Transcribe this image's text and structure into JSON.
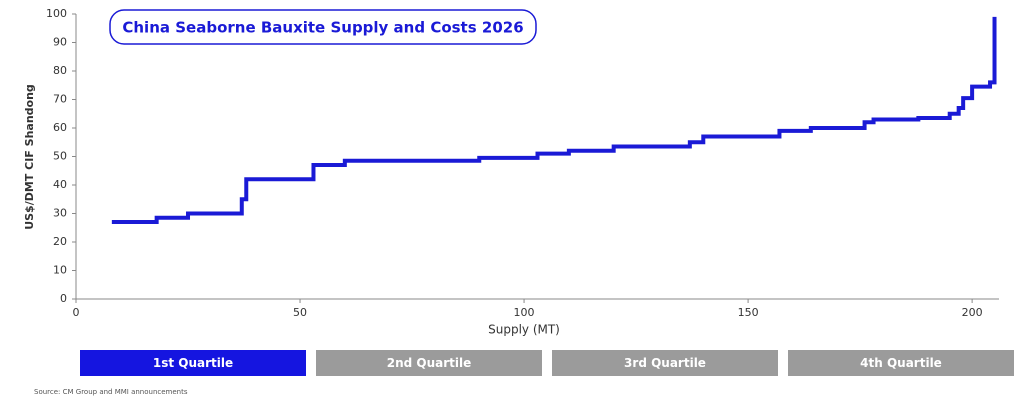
{
  "chart_data": {
    "type": "line",
    "step": "post",
    "title": "China Seaborne Bauxite Supply and Costs 2026",
    "x_label": "Supply (MT)",
    "y_label": "US$/DMT CIF Shandong",
    "x": [
      8,
      18,
      25,
      37,
      38,
      53,
      60,
      90,
      103,
      110,
      120,
      137,
      140,
      157,
      164,
      176,
      178,
      188,
      195,
      197,
      198,
      200,
      204,
      205
    ],
    "values": [
      27,
      28.5,
      30,
      35,
      42,
      47,
      48.5,
      49.5,
      51,
      52,
      53.5,
      55,
      57,
      59,
      60,
      62,
      63,
      63.5,
      65,
      67,
      70.5,
      74.5,
      76,
      99
    ],
    "color": "#1a1ad6",
    "xlim": [
      0,
      206
    ],
    "xticks": [
      0,
      50,
      100,
      150,
      200
    ],
    "ylim": [
      0,
      100
    ],
    "yticks": [
      0,
      10,
      20,
      30,
      40,
      50,
      60,
      70,
      80,
      90,
      100
    ]
  },
  "quartiles": [
    "1st Quartile",
    "2nd Quartile",
    "3rd Quartile",
    "4th Quartile"
  ],
  "source": "Source: CM Group and MMI announcements"
}
